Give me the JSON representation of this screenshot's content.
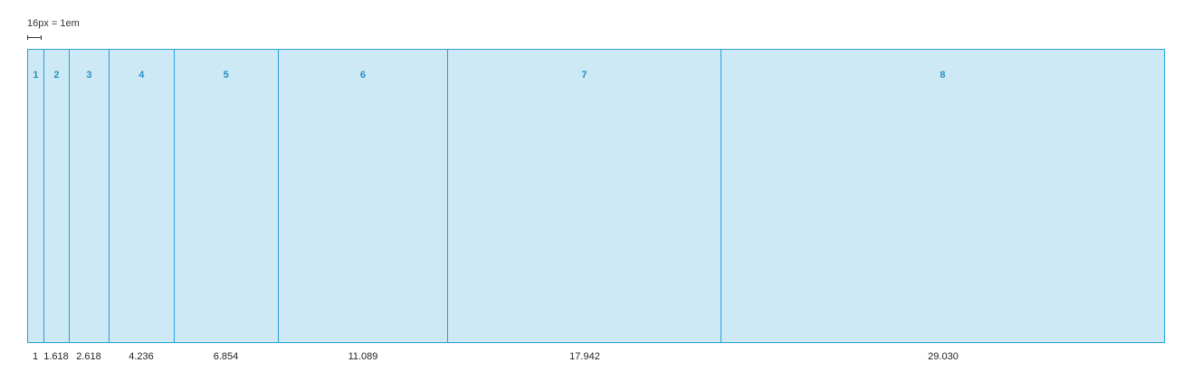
{
  "scale": {
    "label": "16px = 1em"
  },
  "columns": [
    {
      "index": "1",
      "value": "1"
    },
    {
      "index": "2",
      "value": "1.618"
    },
    {
      "index": "3",
      "value": "2.618"
    },
    {
      "index": "4",
      "value": "4.236"
    },
    {
      "index": "5",
      "value": "6.854"
    },
    {
      "index": "6",
      "value": "11.089"
    },
    {
      "index": "7",
      "value": "17.942"
    },
    {
      "index": "8",
      "value": "29.030"
    }
  ],
  "colors": {
    "fill": "#cce9f5",
    "stroke": "#2a9fd6",
    "index_text": "#2a8fc4"
  }
}
